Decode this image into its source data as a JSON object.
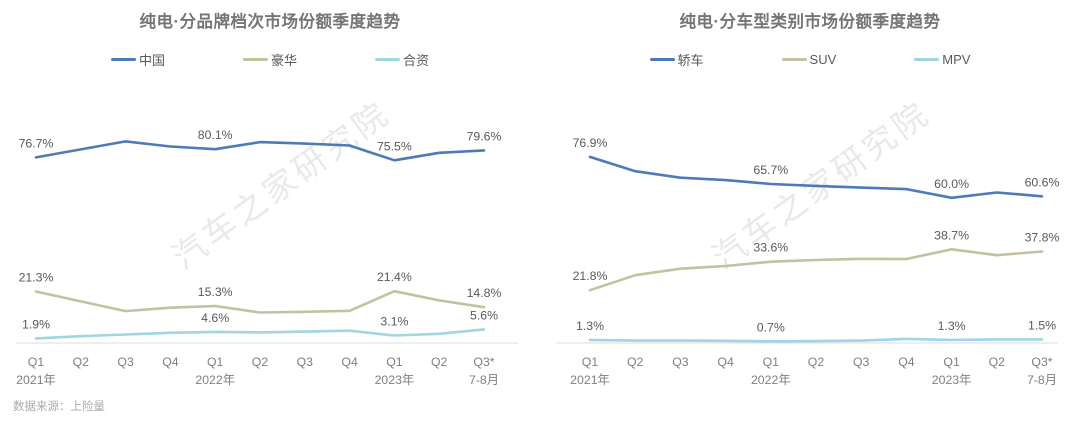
{
  "page": {
    "footer_source": "数据来源：上险量",
    "watermark": "汽车之家研究院"
  },
  "chart_data": [
    {
      "type": "line",
      "title": "纯电·分品牌档次市场份额季度趋势",
      "unit": "%",
      "ylim": [
        0,
        100
      ],
      "grid": false,
      "legend_position": "top",
      "x_quarter_labels": [
        "Q1",
        "Q2",
        "Q3",
        "Q4",
        "Q1",
        "Q2",
        "Q3",
        "Q4",
        "Q1",
        "Q2",
        "Q3*"
      ],
      "x_group_labels": [
        {
          "index": 0,
          "label": "2021年"
        },
        {
          "index": 4,
          "label": "2022年"
        },
        {
          "index": 8,
          "label": "2023年"
        },
        {
          "index": 10,
          "label": "7-8月"
        }
      ],
      "labeled_indices": [
        0,
        4,
        8,
        10
      ],
      "labeled_values_note": "only Q1 of each year and Q3* carry printed labels",
      "series": [
        {
          "name": "中国",
          "color": "#4e7ab7",
          "values": [
            76.7,
            80.0,
            83.3,
            81.2,
            80.1,
            83.0,
            82.4,
            81.6,
            75.5,
            78.6,
            79.6
          ]
        },
        {
          "name": "豪华",
          "color": "#c4c1a0",
          "values": [
            21.3,
            17.2,
            13.2,
            14.6,
            15.3,
            12.6,
            12.9,
            13.3,
            21.4,
            17.6,
            14.8
          ]
        },
        {
          "name": "合资",
          "color": "#a2d5e2",
          "values": [
            1.9,
            2.8,
            3.5,
            4.2,
            4.6,
            4.4,
            4.7,
            5.1,
            3.1,
            3.8,
            5.6
          ]
        }
      ]
    },
    {
      "type": "line",
      "title": "纯电·分车型类别市场份额季度趋势",
      "unit": "%",
      "ylim": [
        0,
        100
      ],
      "grid": false,
      "legend_position": "top",
      "x_quarter_labels": [
        "Q1",
        "Q2",
        "Q3",
        "Q4",
        "Q1",
        "Q2",
        "Q3",
        "Q4",
        "Q1",
        "Q2",
        "Q3*"
      ],
      "x_group_labels": [
        {
          "index": 0,
          "label": "2021年"
        },
        {
          "index": 4,
          "label": "2022年"
        },
        {
          "index": 8,
          "label": "2023年"
        },
        {
          "index": 10,
          "label": "7-8月"
        }
      ],
      "labeled_indices": [
        0,
        4,
        8,
        10
      ],
      "labeled_values_note": "only Q1 of each year and Q3* carry printed labels",
      "series": [
        {
          "name": "轿车",
          "color": "#4e7ab7",
          "values": [
            76.9,
            71.0,
            68.3,
            67.3,
            65.7,
            64.9,
            64.2,
            63.6,
            60.0,
            62.2,
            60.6
          ]
        },
        {
          "name": "SUV",
          "color": "#c4c1a0",
          "values": [
            21.8,
            28.0,
            30.7,
            31.8,
            33.6,
            34.3,
            34.8,
            34.7,
            38.7,
            36.3,
            37.8
          ]
        },
        {
          "name": "MPV",
          "color": "#a2d5e2",
          "values": [
            1.3,
            1.0,
            1.0,
            0.9,
            0.7,
            0.8,
            1.0,
            1.7,
            1.3,
            1.5,
            1.5
          ]
        }
      ]
    }
  ],
  "style": {
    "axis_line_color": "#dcdcdc",
    "axis_text_color": "#7f7f7f",
    "data_label_color": "#595959",
    "watermark_color": "#e9e9e9"
  }
}
